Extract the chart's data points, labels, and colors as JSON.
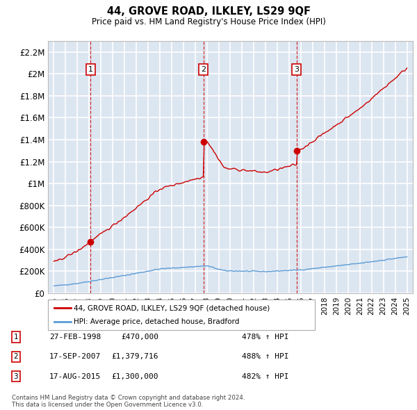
{
  "title": "44, GROVE ROAD, ILKLEY, LS29 9QF",
  "subtitle": "Price paid vs. HM Land Registry's House Price Index (HPI)",
  "legend_line1": "44, GROVE ROAD, ILKLEY, LS29 9QF (detached house)",
  "legend_line2": "HPI: Average price, detached house, Bradford",
  "footer1": "Contains HM Land Registry data © Crown copyright and database right 2024.",
  "footer2": "This data is licensed under the Open Government Licence v3.0.",
  "transactions": [
    {
      "num": 1,
      "date_str": "27-FEB-1998",
      "year": 1998.12,
      "price": 470000,
      "label": "478% ↑ HPI"
    },
    {
      "num": 2,
      "date_str": "17-SEP-2007",
      "year": 2007.71,
      "price": 1379716,
      "label": "488% ↑ HPI"
    },
    {
      "num": 3,
      "date_str": "17-AUG-2015",
      "year": 2015.62,
      "price": 1300000,
      "label": "482% ↑ HPI"
    }
  ],
  "red_line_color": "#cc0000",
  "blue_line_color": "#5b9bd5",
  "plot_bg_color": "#dce6f1",
  "grid_color": "#ffffff",
  "ylim": [
    0,
    2300000
  ],
  "xlim": [
    1994.5,
    2025.5
  ],
  "yticks": [
    0,
    200000,
    400000,
    600000,
    800000,
    1000000,
    1200000,
    1400000,
    1600000,
    1800000,
    2000000,
    2200000
  ],
  "ytick_labels": [
    "£0",
    "£200K",
    "£400K",
    "£600K",
    "£800K",
    "£1M",
    "£1.2M",
    "£1.4M",
    "£1.6M",
    "£1.8M",
    "£2M",
    "£2.2M"
  ],
  "xticks": [
    1995,
    1996,
    1997,
    1998,
    1999,
    2000,
    2001,
    2002,
    2003,
    2004,
    2005,
    2006,
    2007,
    2008,
    2009,
    2010,
    2011,
    2012,
    2013,
    2014,
    2015,
    2016,
    2017,
    2018,
    2019,
    2020,
    2021,
    2022,
    2023,
    2024,
    2025
  ]
}
